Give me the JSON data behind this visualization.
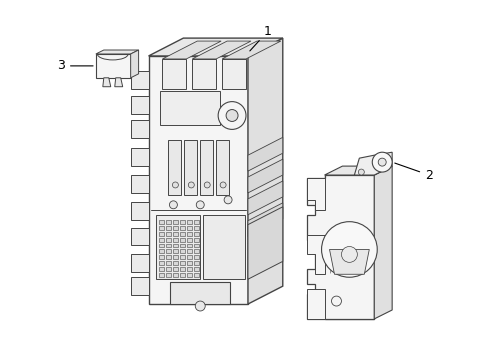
{
  "background_color": "#ffffff",
  "line_color": "#444444",
  "label_color": "#000000",
  "fig_width": 4.89,
  "fig_height": 3.6,
  "dpi": 100
}
